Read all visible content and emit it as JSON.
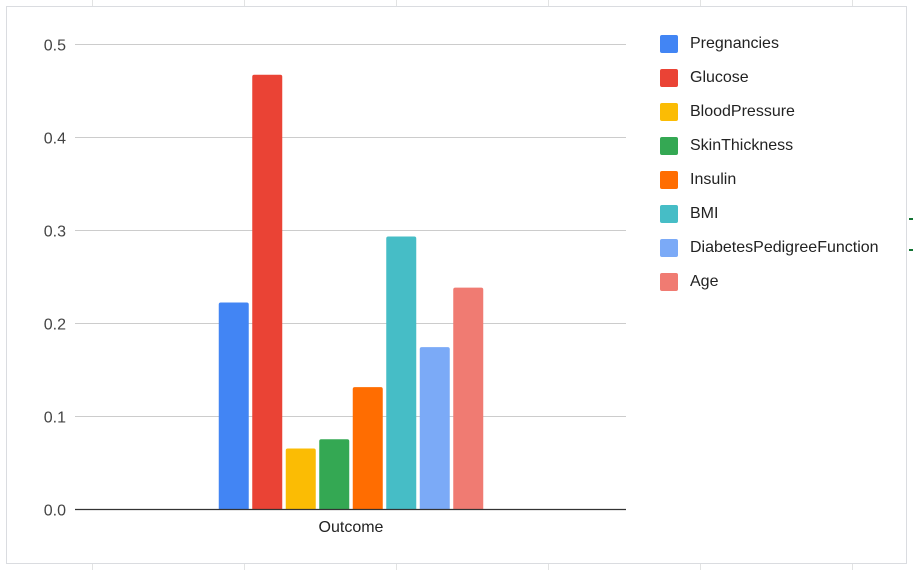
{
  "chart_data": {
    "type": "bar",
    "categories": [
      "Outcome"
    ],
    "series": [
      {
        "name": "Pregnancies",
        "values": [
          0.222
        ],
        "color": "#4285f4"
      },
      {
        "name": "Glucose",
        "values": [
          0.467
        ],
        "color": "#ea4335"
      },
      {
        "name": "BloodPressure",
        "values": [
          0.065
        ],
        "color": "#fbbc04"
      },
      {
        "name": "SkinThickness",
        "values": [
          0.075
        ],
        "color": "#34a853"
      },
      {
        "name": "Insulin",
        "values": [
          0.131
        ],
        "color": "#ff6d01"
      },
      {
        "name": "BMI",
        "values": [
          0.293
        ],
        "color": "#46bdc6"
      },
      {
        "name": "DiabetesPedigreeFunction",
        "values": [
          0.174
        ],
        "color": "#7baaf7"
      },
      {
        "name": "Age",
        "values": [
          0.238
        ],
        "color": "#f07b72"
      }
    ],
    "yticks": [
      "0.0",
      "0.1",
      "0.2",
      "0.3",
      "0.4",
      "0.5"
    ],
    "ylim": [
      0,
      0.5
    ],
    "grid": true,
    "legend_position": "right",
    "title": "",
    "xlabel": "",
    "ylabel": ""
  }
}
